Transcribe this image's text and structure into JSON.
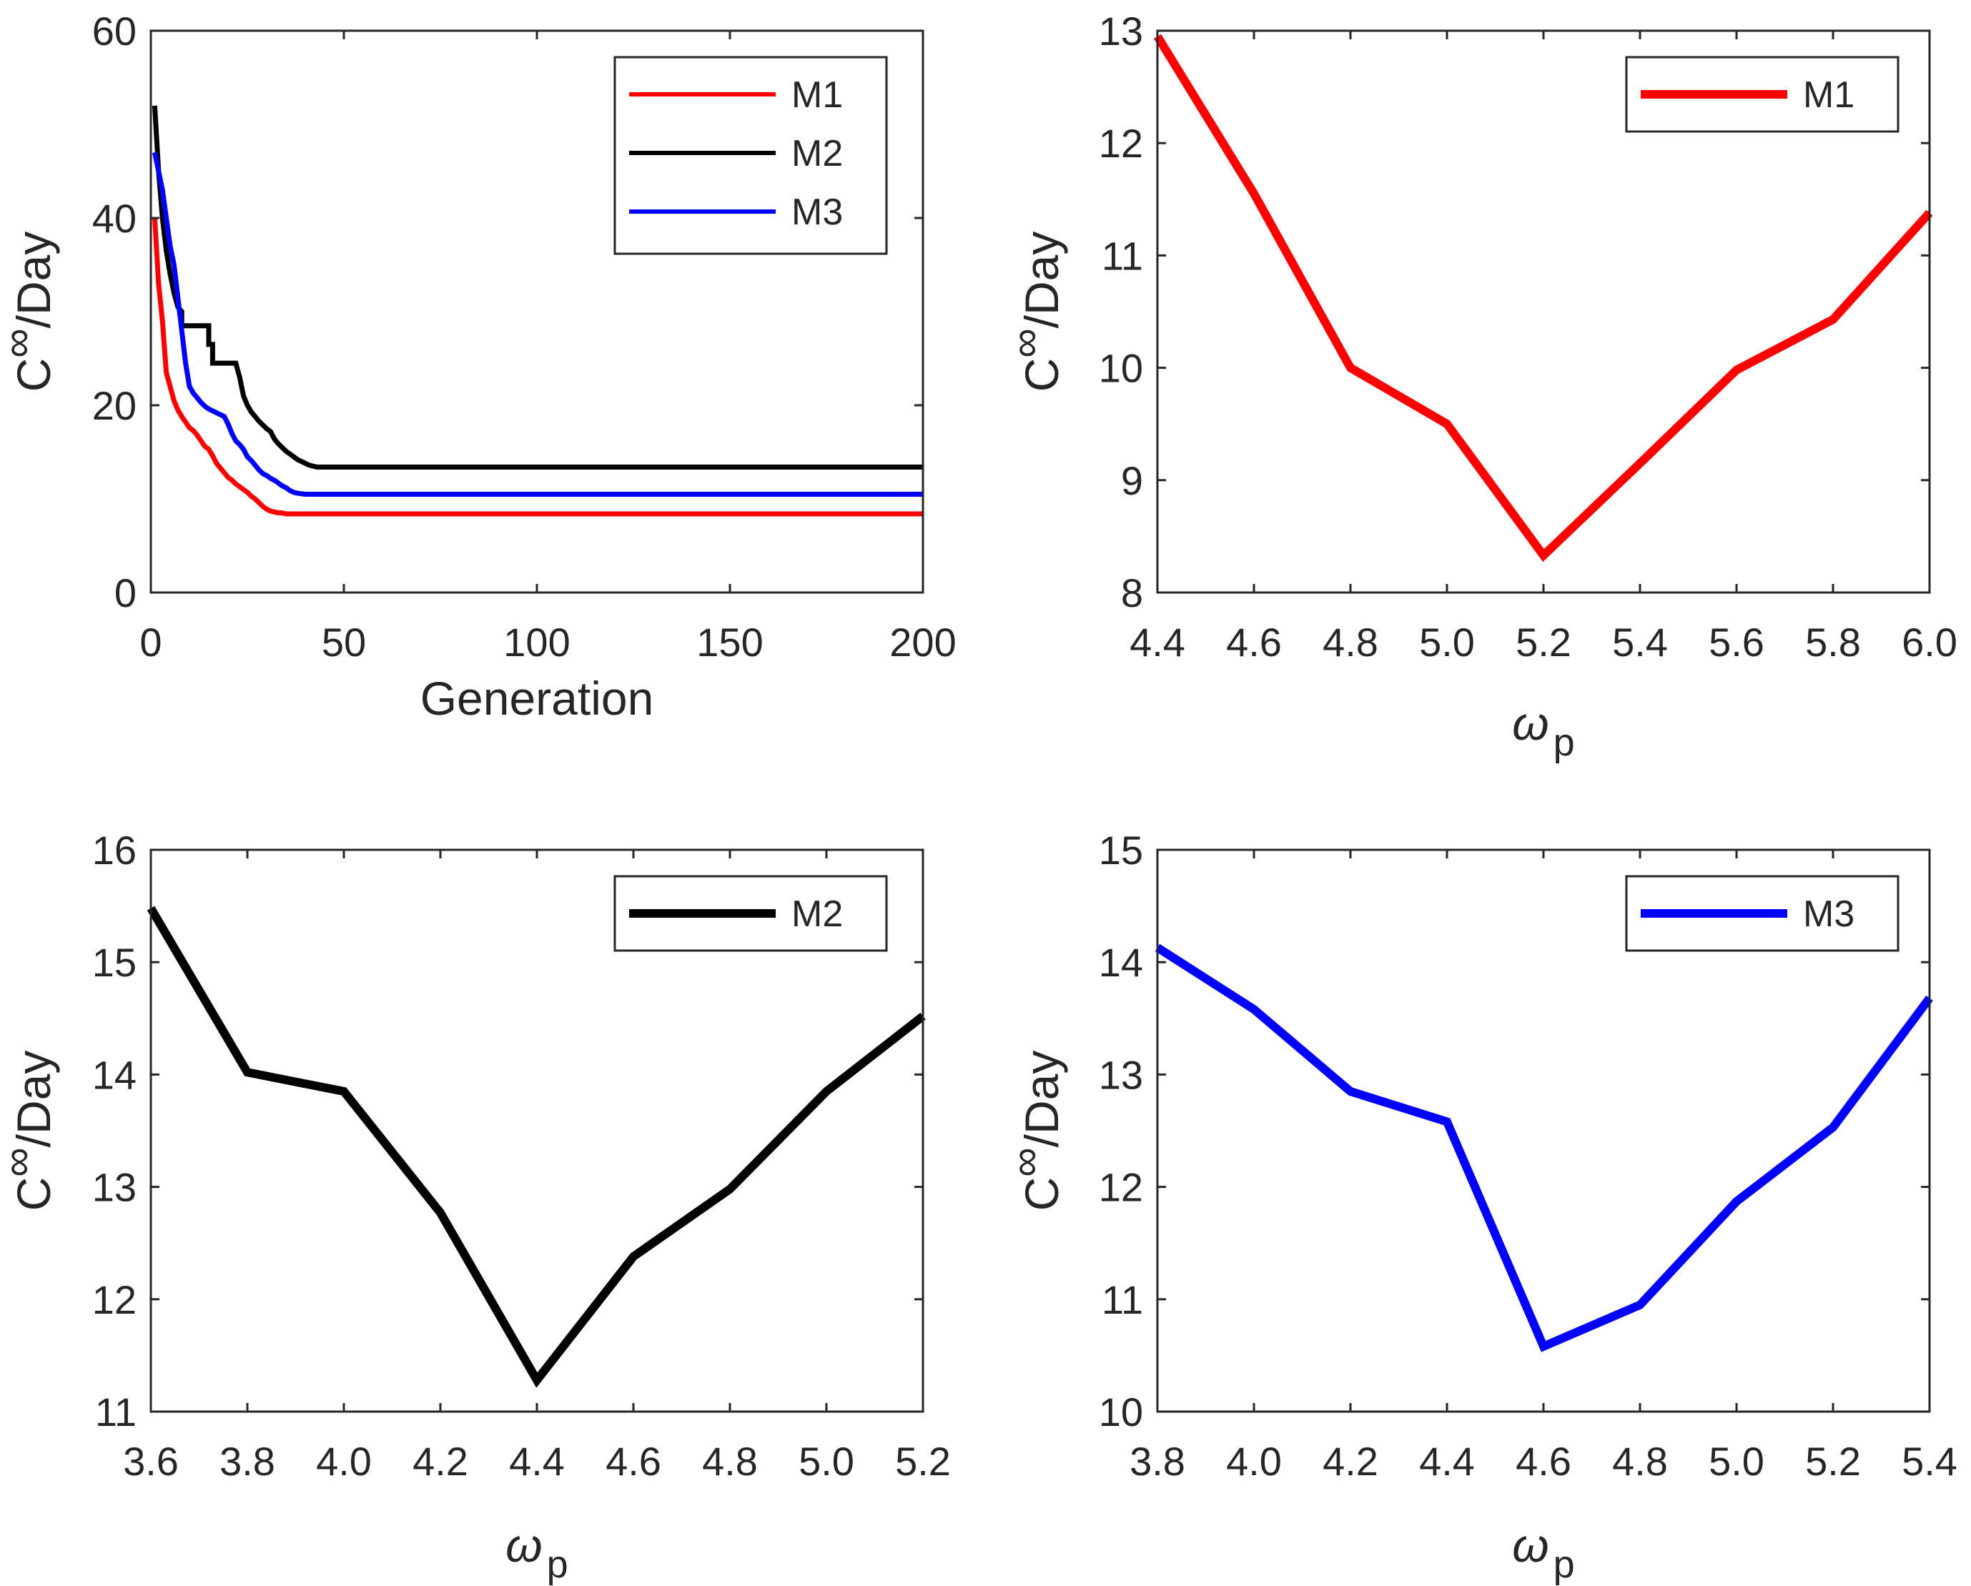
{
  "chart_data": [
    {
      "type": "line",
      "title": "",
      "xlabel": "Generation",
      "ylabel": "C∞/Day",
      "ylabel_base": "C",
      "ylabel_sup": "∞",
      "ylabel_rest": "/Day",
      "xlim": [
        0,
        200
      ],
      "ylim": [
        0,
        60
      ],
      "xticks": [
        "0",
        "50",
        "100",
        "150",
        "200"
      ],
      "yticks": [
        "0",
        "20",
        "40",
        "60"
      ],
      "xtick_values": [
        0,
        50,
        100,
        150,
        200
      ],
      "ytick_values": [
        0,
        20,
        40,
        60
      ],
      "legend_position": "top-right",
      "series": [
        {
          "name": "M1",
          "color": "#ff0000",
          "x": [
            1,
            2,
            3,
            4,
            5,
            6,
            7,
            8,
            9,
            10,
            11,
            12,
            13,
            14,
            15,
            16,
            17,
            18,
            19,
            20,
            21,
            22,
            23,
            24,
            25,
            26,
            27,
            28,
            29,
            30,
            31,
            32,
            33,
            34,
            35,
            40,
            60,
            100,
            150,
            200
          ],
          "y": [
            40,
            33,
            29,
            23.5,
            22,
            20.5,
            19.5,
            18.8,
            18.2,
            17.6,
            17.3,
            16.8,
            16.2,
            15.6,
            15.3,
            14.6,
            13.8,
            13.3,
            12.8,
            12.3,
            12.0,
            11.6,
            11.3,
            11.0,
            10.7,
            10.3,
            10.0,
            9.6,
            9.2,
            8.9,
            8.7,
            8.6,
            8.5,
            8.5,
            8.4,
            8.4,
            8.4,
            8.4,
            8.4,
            8.4
          ]
        },
        {
          "name": "M2",
          "color": "#000000",
          "x": [
            1,
            2,
            3,
            4,
            5,
            6,
            7,
            8,
            8,
            15,
            15,
            16,
            16,
            21,
            21,
            22,
            23,
            24,
            25,
            26,
            27,
            28,
            29,
            30,
            31,
            32,
            33,
            34,
            35,
            36,
            37,
            38,
            39,
            40,
            41,
            42,
            43,
            60,
            100,
            150,
            200
          ],
          "y": [
            52,
            45,
            40,
            36.5,
            34,
            32,
            30.5,
            30,
            28.5,
            28.5,
            26.5,
            26.5,
            24.5,
            24.5,
            24.5,
            24.5,
            23,
            21,
            20,
            19.3,
            18.8,
            18.3,
            17.9,
            17.5,
            17.2,
            16.4,
            15.9,
            15.5,
            15.1,
            14.8,
            14.5,
            14.2,
            14.0,
            13.8,
            13.6,
            13.5,
            13.4,
            13.4,
            13.4,
            13.4,
            13.4
          ]
        },
        {
          "name": "M3",
          "color": "#0000ff",
          "x": [
            1,
            2,
            3,
            4,
            5,
            6,
            7,
            8,
            9,
            10,
            11,
            12,
            13,
            14,
            15,
            16,
            17,
            18,
            19,
            20,
            21,
            22,
            23,
            24,
            25,
            26,
            27,
            28,
            29,
            30,
            31,
            32,
            33,
            34,
            35,
            36,
            37,
            38,
            40,
            60,
            100,
            150,
            200
          ],
          "y": [
            47,
            45,
            43,
            40,
            37,
            35,
            31.5,
            28,
            24.5,
            22,
            21.3,
            20.8,
            20.3,
            19.9,
            19.6,
            19.4,
            19.2,
            19.0,
            18.8,
            18.0,
            17.0,
            16.2,
            15.8,
            15.3,
            14.5,
            14.1,
            13.6,
            13.1,
            12.7,
            12.5,
            12.2,
            12.0,
            11.7,
            11.4,
            11.2,
            10.9,
            10.7,
            10.6,
            10.5,
            10.5,
            10.5,
            10.5,
            10.5
          ]
        }
      ]
    },
    {
      "type": "line",
      "title": "",
      "xlabel": "ω",
      "xlabel_sub": "p",
      "ylabel": "C∞/Day",
      "ylabel_base": "C",
      "ylabel_sup": "∞",
      "ylabel_rest": "/Day",
      "xlim": [
        4.4,
        6.0
      ],
      "ylim": [
        8,
        13
      ],
      "xticks": [
        "4.4",
        "4.6",
        "4.8",
        "5.0",
        "5.2",
        "5.4",
        "5.6",
        "5.8",
        "6.0"
      ],
      "yticks": [
        "8",
        "9",
        "10",
        "11",
        "12",
        "13"
      ],
      "xtick_values": [
        4.4,
        4.6,
        4.8,
        5.0,
        5.2,
        5.4,
        5.6,
        5.8,
        6.0
      ],
      "ytick_values": [
        8,
        9,
        10,
        11,
        12,
        13
      ],
      "legend_position": "top-right",
      "series": [
        {
          "name": "M1",
          "color": "#ff0000",
          "x": [
            4.4,
            4.6,
            4.8,
            5.0,
            5.2,
            5.4,
            5.6,
            5.8,
            6.0
          ],
          "y": [
            12.95,
            11.55,
            10.0,
            9.5,
            8.33,
            9.15,
            9.98,
            10.43,
            11.38
          ]
        }
      ]
    },
    {
      "type": "line",
      "title": "",
      "xlabel": "ω",
      "xlabel_sub": "p",
      "ylabel": "C∞/Day",
      "ylabel_base": "C",
      "ylabel_sup": "∞",
      "ylabel_rest": "/Day",
      "xlim": [
        3.6,
        5.2
      ],
      "ylim": [
        11,
        16
      ],
      "xticks": [
        "3.6",
        "3.8",
        "4.0",
        "4.2",
        "4.4",
        "4.6",
        "4.8",
        "5.0",
        "5.2"
      ],
      "yticks": [
        "11",
        "12",
        "13",
        "14",
        "15",
        "16"
      ],
      "xtick_values": [
        3.6,
        3.8,
        4.0,
        4.2,
        4.4,
        4.6,
        4.8,
        5.0,
        5.2
      ],
      "ytick_values": [
        11,
        12,
        13,
        14,
        15,
        16
      ],
      "legend_position": "top-right",
      "series": [
        {
          "name": "M2",
          "color": "#000000",
          "x": [
            3.6,
            3.8,
            4.0,
            4.2,
            4.4,
            4.6,
            4.8,
            5.0,
            5.2
          ],
          "y": [
            15.48,
            14.02,
            13.85,
            12.77,
            11.28,
            12.38,
            12.98,
            13.85,
            14.52
          ]
        }
      ]
    },
    {
      "type": "line",
      "title": "",
      "xlabel": "ω",
      "xlabel_sub": "p",
      "ylabel": "C∞/Day",
      "ylabel_base": "C",
      "ylabel_sup": "∞",
      "ylabel_rest": "/Day",
      "xlim": [
        3.8,
        5.4
      ],
      "ylim": [
        10,
        15
      ],
      "xticks": [
        "3.8",
        "4.0",
        "4.2",
        "4.4",
        "4.6",
        "4.8",
        "5.0",
        "5.2",
        "5.4"
      ],
      "yticks": [
        "10",
        "11",
        "12",
        "13",
        "14",
        "15"
      ],
      "xtick_values": [
        3.8,
        4.0,
        4.2,
        4.4,
        4.6,
        4.8,
        5.0,
        5.2,
        5.4
      ],
      "ytick_values": [
        10,
        11,
        12,
        13,
        14,
        15
      ],
      "legend_position": "top-right",
      "series": [
        {
          "name": "M3",
          "color": "#0000ff",
          "x": [
            3.8,
            4.0,
            4.2,
            4.4,
            4.6,
            4.8,
            5.0,
            5.2,
            5.4
          ],
          "y": [
            14.13,
            13.58,
            12.85,
            12.58,
            10.58,
            10.95,
            11.87,
            12.53,
            13.68
          ]
        }
      ]
    }
  ]
}
